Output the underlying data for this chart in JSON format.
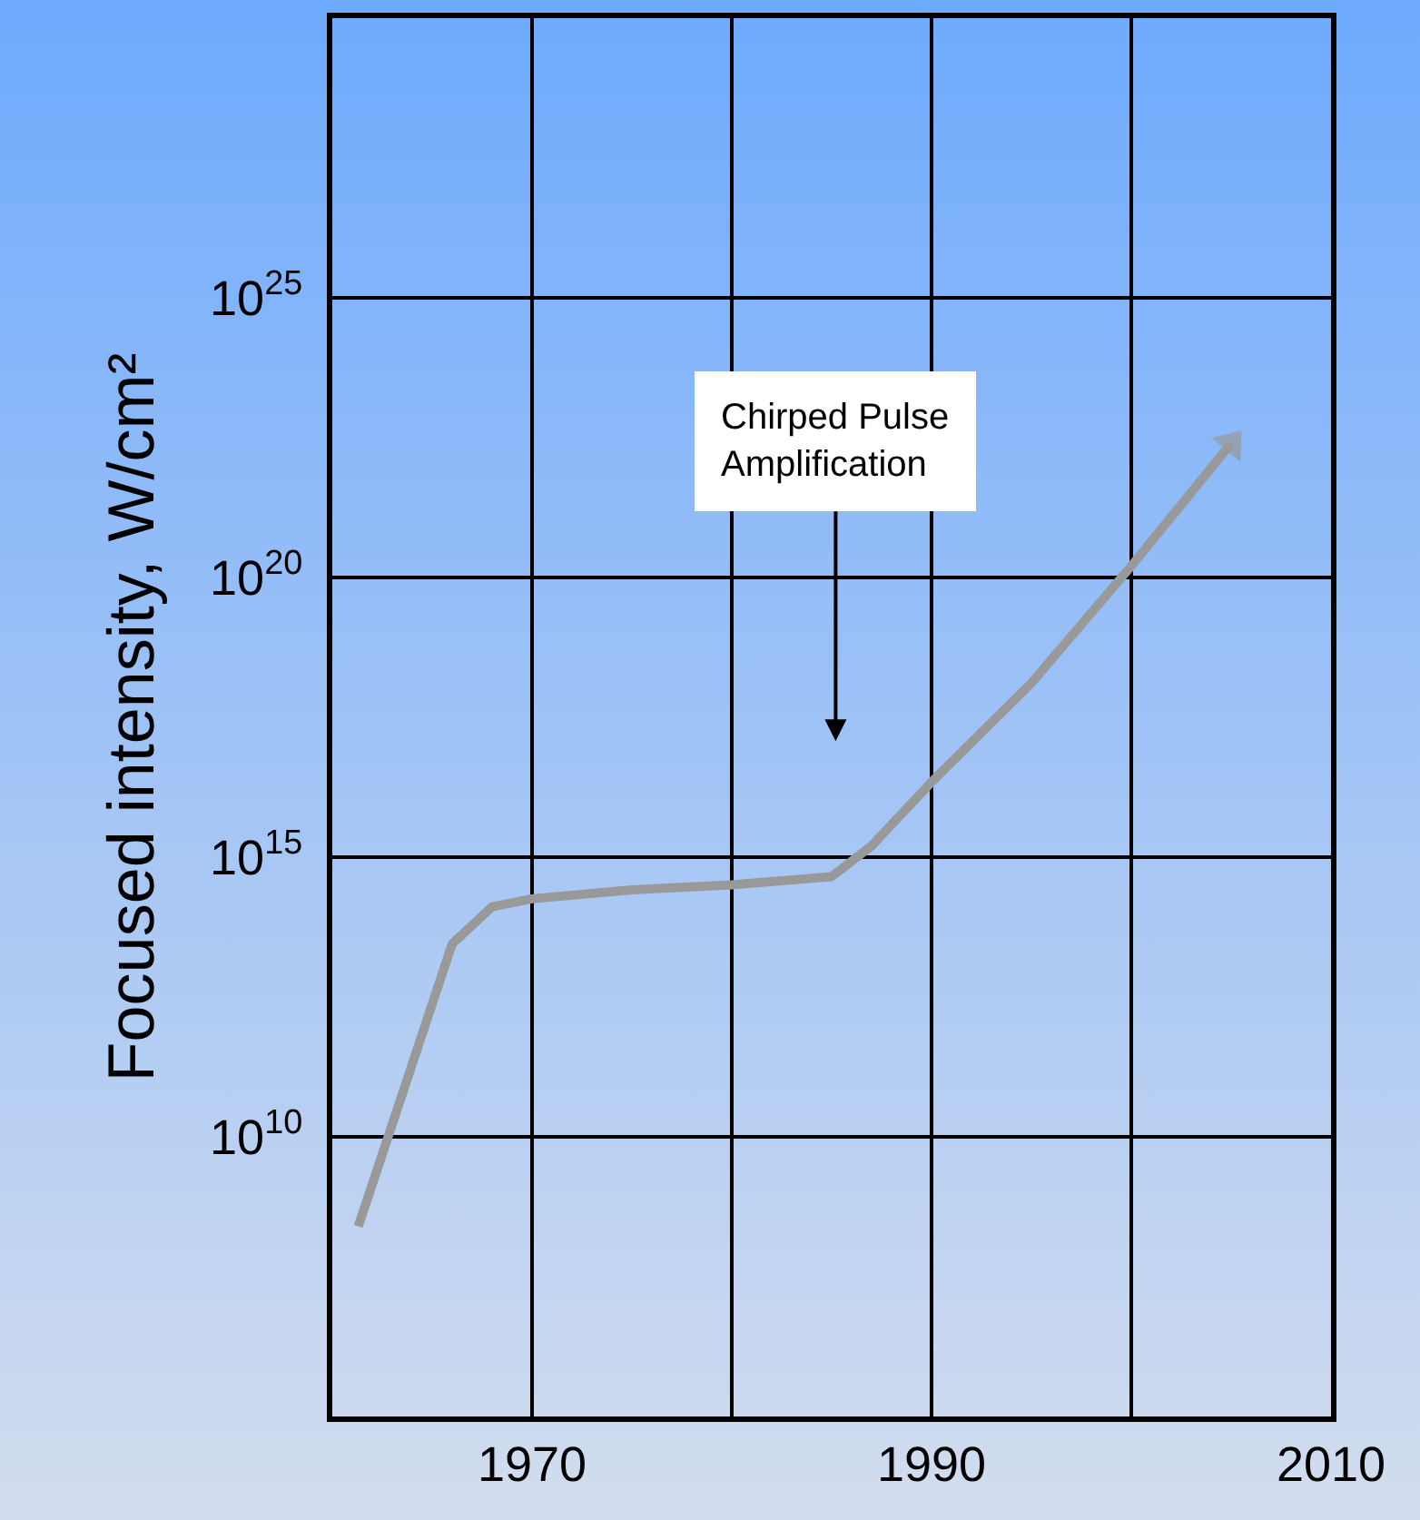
{
  "chart_data": {
    "type": "line",
    "ylabel": "Focused intensity, W/cm²",
    "x": [
      1961.3,
      1966,
      1968,
      1970,
      1975,
      1980,
      1985,
      1987,
      1990,
      1995,
      2000,
      2005
    ],
    "series": [
      {
        "color": "#999999",
        "values": [
          250000000.0,
          28000000000000.0,
          130000000000000.0,
          180000000000000.0,
          260000000000000.0,
          320000000000000.0,
          450000000000000.0,
          1600000000000000.0,
          2.2e+16,
          1.3e+18,
          1.6e+20,
          2.5e+22
        ]
      }
    ],
    "log": true,
    "xlim": [
      1960,
      2010
    ],
    "ylim": [
      100000.0,
      1e+30
    ],
    "xticks": [
      1970,
      {
        "value": 1980,
        "label": null
      },
      1990,
      {
        "value": 2000,
        "label": null
      },
      2010
    ],
    "yticks": [
      {
        "value": 10000000000.0,
        "label": "10$^{10}$"
      },
      {
        "value": 1000000000000000.0,
        "label": "10$^{15}$"
      },
      {
        "value": 1e+20,
        "label": "10$^{20}$"
      },
      {
        "value": 1e+25,
        "label": "10$^{25}$"
      }
    ],
    "grid": true,
    "marker": "none",
    "line_style": "solid",
    "annotations": [
      "Chirped Pulse\nAmplification"
    ]
  }
}
